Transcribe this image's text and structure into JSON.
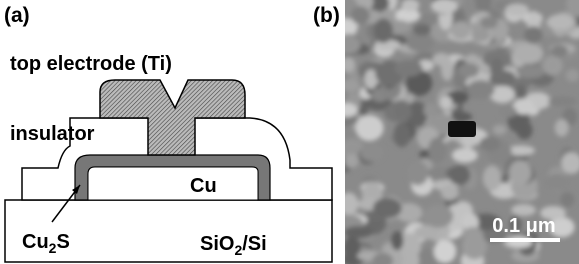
{
  "panel_a": {
    "label": "(a)",
    "top_electrode": "top electrode (Ti)",
    "insulator": "insulator",
    "cu": "Cu",
    "cu2s": [
      "Cu",
      "2",
      "S"
    ],
    "substrate": [
      "SiO",
      "2",
      "/Si"
    ]
  },
  "panel_b": {
    "label": "(b)",
    "scale_bar": "0.1 μm"
  }
}
